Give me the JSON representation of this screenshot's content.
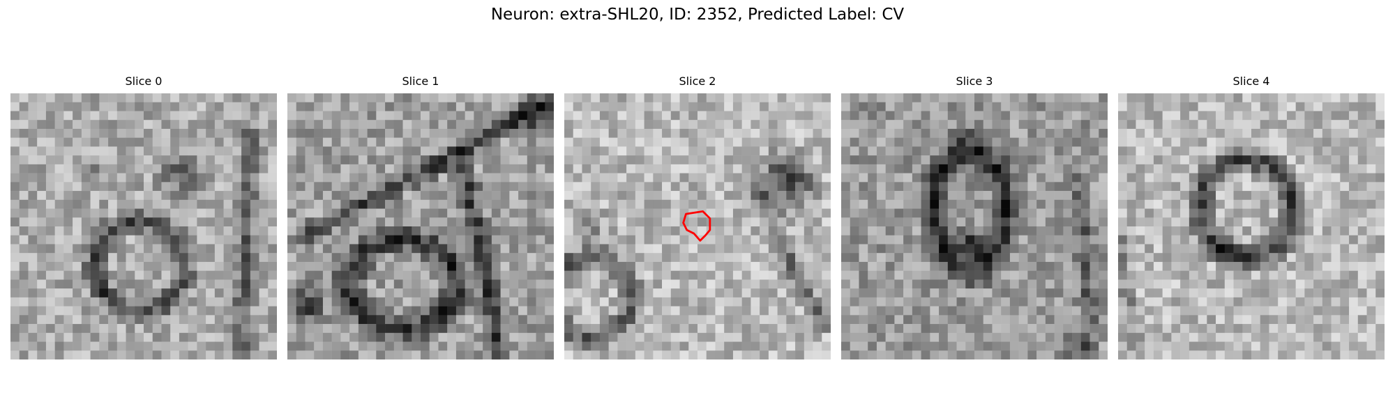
{
  "figure": {
    "title": "Neuron: extra-SHL20, ID: 2352, Predicted Label: CV"
  },
  "slices": [
    {
      "title": "Slice 0",
      "description": "grayscale EM patch with a dark ring-shaped vesicle in the lower-left and a smaller dark blob upper-middle"
    },
    {
      "title": "Slice 1",
      "description": "grayscale EM patch with a dark ring-shaped vesicle lower-middle and dark membrane streaks crossing the top"
    },
    {
      "title": "Slice 2",
      "description": "grayscale EM patch, lighter center, dark structures at left and right edges, with a red outlined ROI near the center"
    },
    {
      "title": "Slice 3",
      "description": "grayscale EM patch with a dark vertical elongated structure in the center"
    },
    {
      "title": "Slice 4",
      "description": "grayscale EM patch with a dark triangular ring-shaped vesicle in the center"
    }
  ],
  "roi": {
    "color": "#ff0000",
    "slice_index": 2
  }
}
